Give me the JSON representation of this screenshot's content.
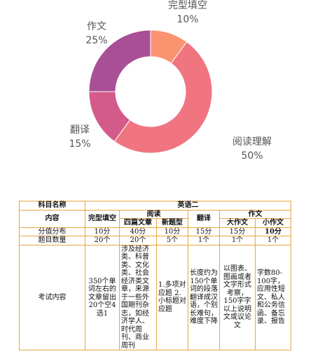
{
  "chart_data": {
    "type": "pie",
    "donut": true,
    "title": "",
    "categories": [
      "完型填空",
      "阅读理解",
      "翻译",
      "作文"
    ],
    "values": [
      10,
      50,
      15,
      25
    ],
    "labels": [
      {
        "name": "完型填空",
        "pct": "10%"
      },
      {
        "name": "阅读理解",
        "pct": "50%"
      },
      {
        "name": "翻译",
        "pct": "15%"
      },
      {
        "name": "作文",
        "pct": "25%"
      }
    ],
    "colors": [
      "#f99370",
      "#f07581",
      "#d45a8a",
      "#a84f95"
    ],
    "legend": "none"
  },
  "table": {
    "subject_label": "科目名称",
    "subject_value": "英语二",
    "content_label": "内容",
    "headers": {
      "cloze": "完型填空",
      "reading": "阅读",
      "reading_sub1": "四篇文章",
      "reading_sub2": "新题型",
      "translation": "翻译",
      "writing": "作文",
      "writing_sub1": "大作文",
      "writing_sub2": "小作文"
    },
    "score_row": {
      "label": "分值分布",
      "values": [
        "10分",
        "40分",
        "10分",
        "15分",
        "15分",
        "10分"
      ]
    },
    "count_row": {
      "label": "题目数量",
      "values": [
        "20个",
        "20个",
        "5个",
        "1个",
        "1个",
        "1个"
      ]
    },
    "content_row": {
      "label": "考试内容",
      "values": [
        "350个单词左右的文章留出20个空4选1",
        "涉及经济类、科普类、文化类、社会经济类文章，来源于一些外国期刊杂志，如经济学人、时代周刊、商业周刊",
        "1.多项对应题 2.小标题对应题",
        "长度约为150个单词的段落翻译成汉语，个别长难句，难度下降",
        "以图表、图画或者文字形式考察，150字字以上说明文或议论文",
        "字数80-100字，应用性短文、私人和公务信函、备忘录、报告"
      ]
    }
  }
}
